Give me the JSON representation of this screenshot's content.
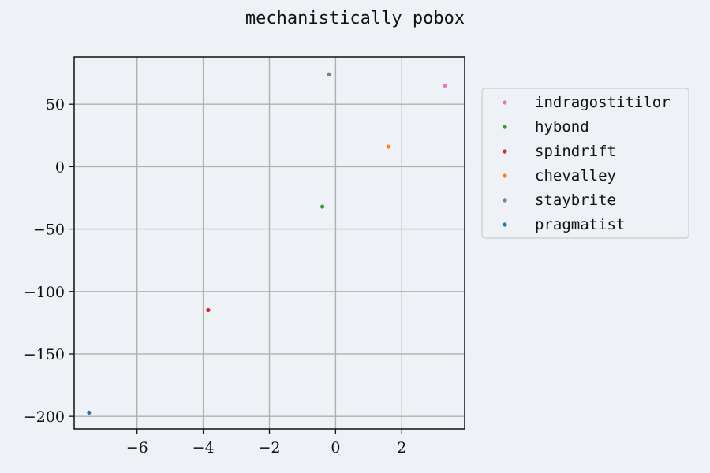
{
  "chart_data": {
    "type": "scatter",
    "title": "mechanistically pobox",
    "xlabel": "",
    "ylabel": "",
    "xlim": [
      -7.9,
      3.9
    ],
    "ylim": [
      -210,
      88
    ],
    "xticks": [
      -6,
      -4,
      -2,
      0,
      2
    ],
    "xtick_labels": [
      "−6",
      "−4",
      "−2",
      "0",
      "2"
    ],
    "yticks": [
      -200,
      -150,
      -100,
      -50,
      0,
      50
    ],
    "ytick_labels": [
      "−200",
      "−150",
      "−100",
      "−50",
      "0",
      "50"
    ],
    "grid": true,
    "legend_position": "outside-right-top",
    "series": [
      {
        "name": "indragostitilor",
        "color": "#e377c2",
        "points": [
          {
            "x": 3.3,
            "y": 65
          }
        ]
      },
      {
        "name": "hybond",
        "color": "#2ca02c",
        "points": [
          {
            "x": -0.4,
            "y": -32
          }
        ]
      },
      {
        "name": "spindrift",
        "color": "#d62728",
        "points": [
          {
            "x": -3.85,
            "y": -115
          }
        ]
      },
      {
        "name": "chevalley",
        "color": "#ff7f0e",
        "points": [
          {
            "x": 1.6,
            "y": 16
          }
        ]
      },
      {
        "name": "staybrite",
        "color": "#7f7f7f",
        "points": [
          {
            "x": -0.2,
            "y": 74
          }
        ]
      },
      {
        "name": "pragmatist",
        "color": "#1f77b4",
        "points": [
          {
            "x": -7.45,
            "y": -197
          }
        ]
      }
    ]
  }
}
